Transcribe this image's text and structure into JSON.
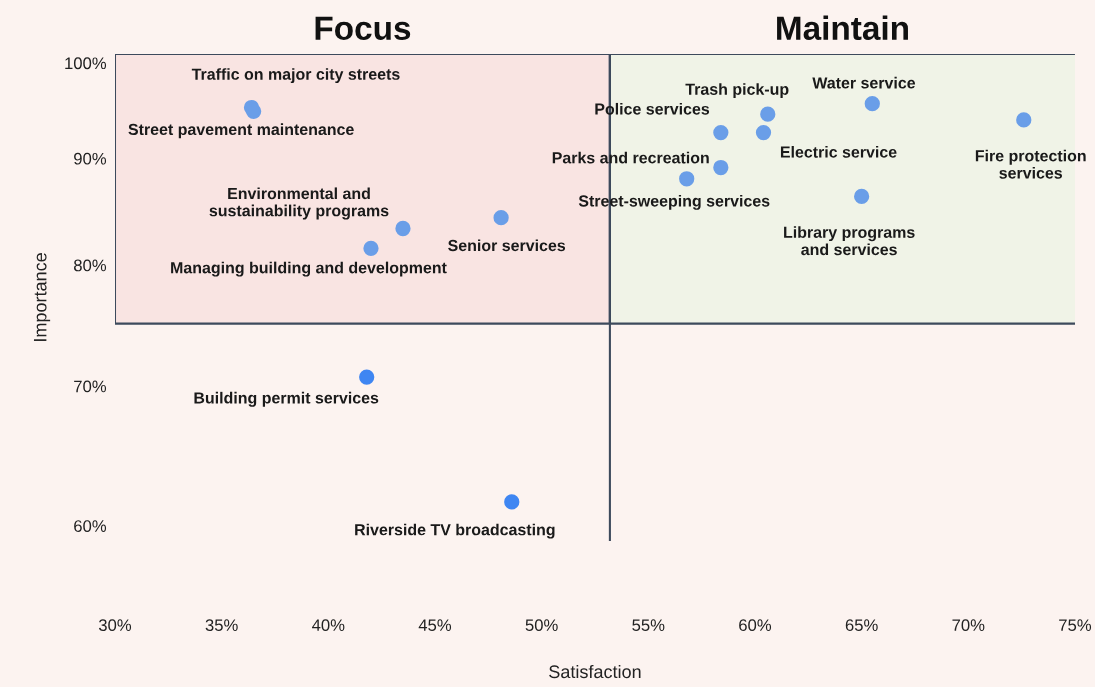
{
  "chart_data": {
    "type": "scatter",
    "xlabel": "Satisfaction",
    "ylabel": "Importance",
    "x": [
      36.4,
      36.5,
      43.5,
      42.0,
      48.1,
      41.8,
      48.6,
      60.6,
      65.5,
      58.4,
      60.4,
      58.4,
      56.8,
      65.0,
      72.6
    ],
    "series": [
      {
        "values": [
          95.2,
          94.8,
          83.3,
          81.5,
          84.3,
          70.7,
          61.6,
          94.5,
          95.6,
          92.6,
          92.6,
          89.1,
          88.0,
          86.3,
          93.9
        ],
        "colors": [
          "#6a9ee8",
          "#6a9ee8",
          "#6a9ee8",
          "#6a9ee8",
          "#6a9ee8",
          "#3f86f2",
          "#3f86f2",
          "#6a9ee8",
          "#6a9ee8",
          "#6a9ee8",
          "#6a9ee8",
          "#6a9ee8",
          "#6a9ee8",
          "#6a9ee8",
          "#6a9ee8"
        ]
      }
    ],
    "annotations": [
      {
        "text": "Traffic on major city streets",
        "x": 36.4,
        "y": 95.2
      },
      {
        "text": "Street pavement maintenance",
        "x": 36.5,
        "y": 94.8
      },
      {
        "text": "Environmental and\nsustainability programs",
        "x": 43.5,
        "y": 83.3
      },
      {
        "text": "Managing building and development",
        "x": 42.0,
        "y": 81.5
      },
      {
        "text": "Senior services",
        "x": 48.1,
        "y": 84.3
      },
      {
        "text": "Building permit services",
        "x": 41.8,
        "y": 70.7
      },
      {
        "text": "Riverside TV broadcasting",
        "x": 48.6,
        "y": 61.6
      },
      {
        "text": "Trash pick-up",
        "x": 60.6,
        "y": 94.5
      },
      {
        "text": "Water service",
        "x": 65.5,
        "y": 95.6
      },
      {
        "text": "Police services",
        "x": 58.4,
        "y": 92.6
      },
      {
        "text": "Electric service",
        "x": 60.4,
        "y": 92.6
      },
      {
        "text": "Parks and recreation",
        "x": 58.4,
        "y": 89.1
      },
      {
        "text": "Street-sweeping services",
        "x": 56.8,
        "y": 88.0
      },
      {
        "text": "Library programs\nand services",
        "x": 65.0,
        "y": 86.3
      },
      {
        "text": "Fire protection\nservices",
        "x": 72.6,
        "y": 93.9
      }
    ],
    "log": "y",
    "marker": "circle",
    "grid": false,
    "xlim": [
      30,
      75
    ],
    "ylim": [
      59,
      101
    ],
    "xticks": [
      {
        "value": 30,
        "label": "30%"
      },
      {
        "value": 35,
        "label": "35%"
      },
      {
        "value": 40,
        "label": "40%"
      },
      {
        "value": 45,
        "label": "45%"
      },
      {
        "value": 50,
        "label": "50%"
      },
      {
        "value": 55,
        "label": "55%"
      },
      {
        "value": 60,
        "label": "60%"
      },
      {
        "value": 65,
        "label": "65%"
      },
      {
        "value": 70,
        "label": "70%"
      },
      {
        "value": 75,
        "label": "75%"
      }
    ],
    "yticks": [
      {
        "value": 60,
        "label": "60%"
      },
      {
        "value": 70,
        "label": "70%"
      },
      {
        "value": 80,
        "label": "80%"
      },
      {
        "value": 90,
        "label": "90%"
      },
      {
        "value": 100,
        "label": "100%"
      }
    ],
    "ref_lines": [
      {
        "axis": "x",
        "value": 53.2,
        "color": "#3d4a5c"
      },
      {
        "axis": "y",
        "value": 75,
        "color": "#3d4a5c"
      }
    ],
    "bands": [
      {
        "axis": "x",
        "from": 30,
        "to": 53.2,
        "label": "Focus",
        "color": "#f9e4e2"
      },
      {
        "axis": "x",
        "from": 53.2,
        "to": 75,
        "label": "Maintain",
        "color": "#f0f3e7"
      }
    ]
  }
}
